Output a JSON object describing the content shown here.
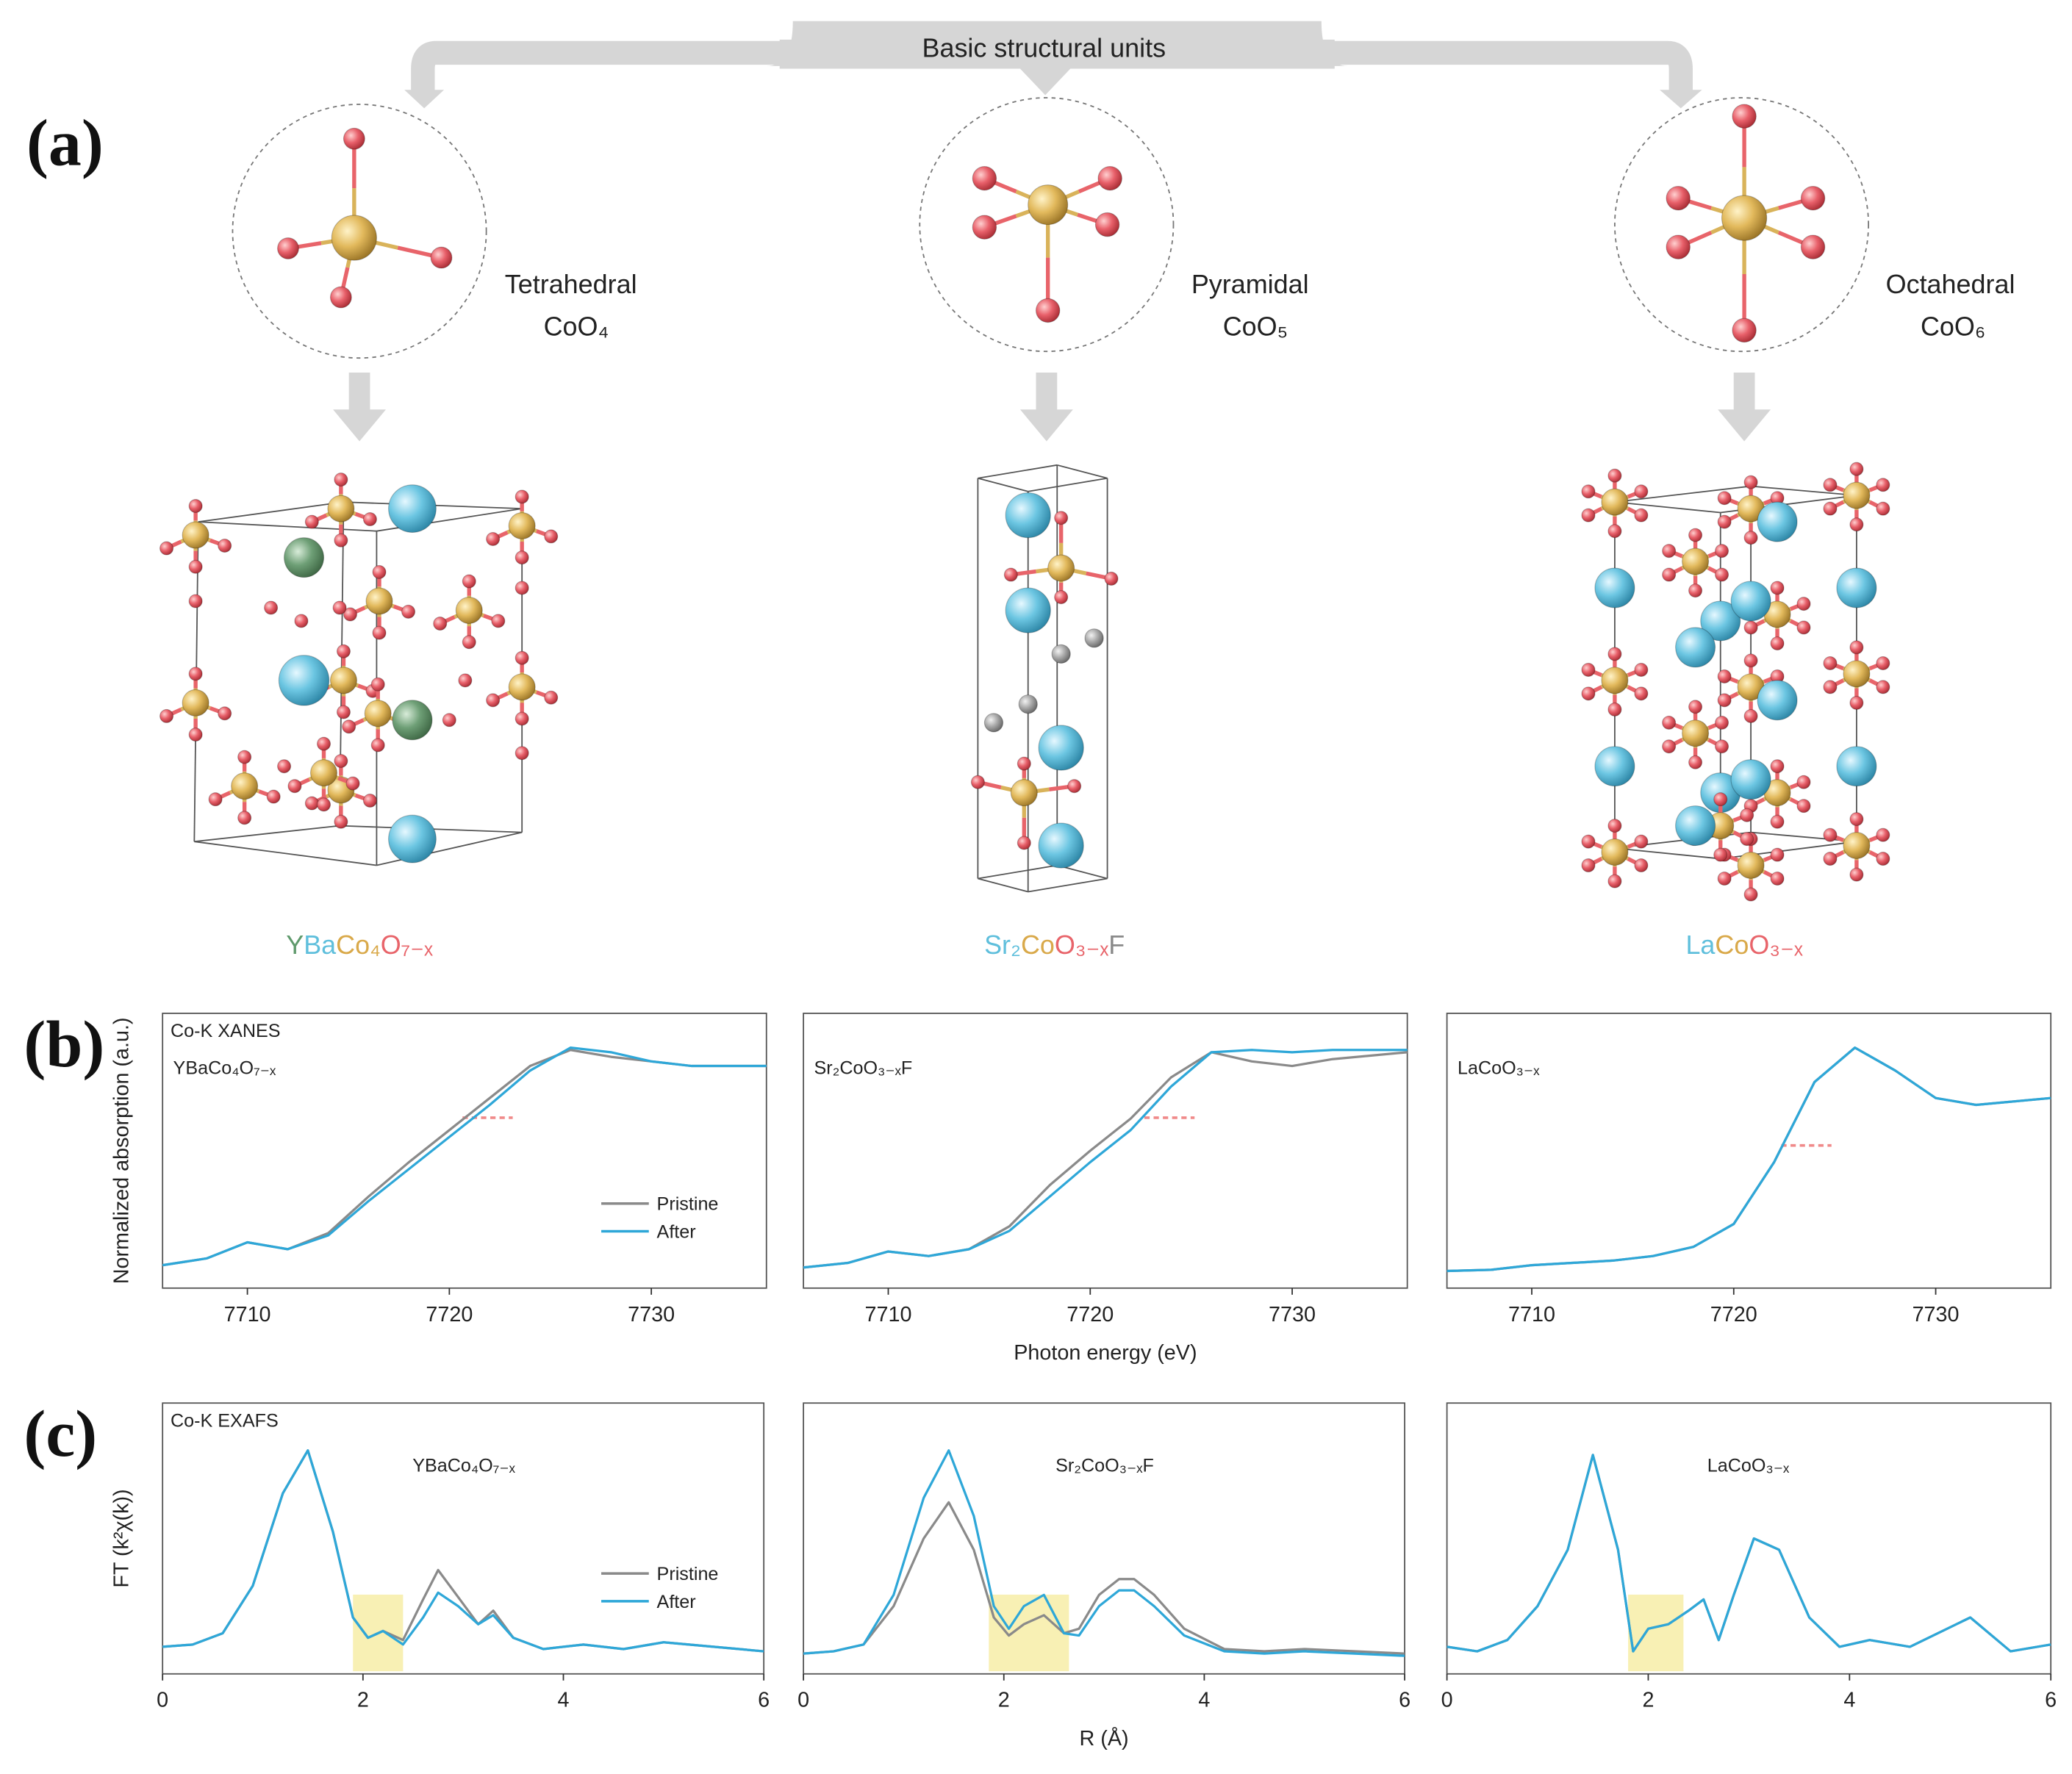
{
  "panel_a": {
    "label": "(a)",
    "title": "Basic structural units",
    "units": [
      {
        "name": "Tetrahedral",
        "formula": "CoO₄",
        "compound": [
          {
            "text": "Y",
            "color": "#5f9a6c"
          },
          {
            "text": "Ba",
            "color": "#5fbfdc"
          },
          {
            "text": "Co₄",
            "color": "#d9a94a"
          },
          {
            "text": "O₇₋ₓ",
            "color": "#e8646a"
          }
        ]
      },
      {
        "name": "Pyramidal",
        "formula": "CoO₅",
        "compound": [
          {
            "text": "Sr₂",
            "color": "#5fbfdc"
          },
          {
            "text": "Co",
            "color": "#d9a94a"
          },
          {
            "text": "O₃₋ₓ",
            "color": "#e8646a"
          },
          {
            "text": "F",
            "color": "#8a8a8a"
          }
        ]
      },
      {
        "name": "Octahedral",
        "formula": "CoO₆",
        "compound": [
          {
            "text": "La",
            "color": "#5fbfdc"
          },
          {
            "text": "Co",
            "color": "#d9a94a"
          },
          {
            "text": "O₃₋ₓ",
            "color": "#e8646a"
          }
        ]
      }
    ]
  },
  "chart_data": [
    {
      "type": "line",
      "panel_label": "(b)",
      "label": "Co-K XANES",
      "sample": "YBaCo₄O₇₋ₓ",
      "y_label": "Normalized absorption (a.u.)",
      "x": [
        7705.8,
        7708,
        7710,
        7712,
        7714,
        7716,
        7718,
        7720,
        7722,
        7724,
        7726,
        7728,
        7730,
        7732,
        7735.7
      ],
      "xlim": [
        7705.8,
        7735.7
      ],
      "xticks": [
        7710,
        7720,
        7730
      ],
      "ylim": [
        0,
        1.2
      ],
      "legend": "lower right",
      "series": [
        {
          "name": "Pristine",
          "color": "#8a8a8a",
          "values": [
            0.1,
            0.13,
            0.2,
            0.17,
            0.24,
            0.4,
            0.55,
            0.69,
            0.83,
            0.97,
            1.04,
            1.01,
            0.99,
            0.97,
            0.97
          ]
        },
        {
          "name": "After",
          "color": "#2ea7d8",
          "values": [
            0.1,
            0.13,
            0.2,
            0.17,
            0.23,
            0.38,
            0.52,
            0.66,
            0.8,
            0.95,
            1.05,
            1.03,
            0.99,
            0.97,
            0.97
          ]
        }
      ]
    },
    {
      "type": "line",
      "sample": "Sr₂CoO₃₋ₓF",
      "x_label": "Photon energy (eV)",
      "x": [
        7705.8,
        7708,
        7710,
        7712,
        7714,
        7716,
        7718,
        7720,
        7722,
        7724,
        7726,
        7728,
        7730,
        7732,
        7735.7
      ],
      "xlim": [
        7705.8,
        7735.7
      ],
      "xticks": [
        7710,
        7720,
        7730
      ],
      "ylim": [
        0,
        1.2
      ],
      "series": [
        {
          "name": "Pristine",
          "color": "#8a8a8a",
          "values": [
            0.09,
            0.11,
            0.16,
            0.14,
            0.17,
            0.27,
            0.45,
            0.6,
            0.74,
            0.92,
            1.03,
            0.99,
            0.97,
            1.0,
            1.03
          ]
        },
        {
          "name": "After",
          "color": "#2ea7d8",
          "values": [
            0.09,
            0.11,
            0.16,
            0.14,
            0.17,
            0.25,
            0.4,
            0.55,
            0.69,
            0.88,
            1.03,
            1.04,
            1.03,
            1.04,
            1.04
          ]
        }
      ]
    },
    {
      "type": "line",
      "sample": "LaCoO₃₋ₓ",
      "x": [
        7705.8,
        7708,
        7710,
        7712,
        7714,
        7716,
        7718,
        7720,
        7722,
        7724,
        7726,
        7728,
        7730,
        7732,
        7735.7
      ],
      "xlim": [
        7705.8,
        7735.7
      ],
      "xticks": [
        7710,
        7720,
        7730
      ],
      "ylim": [
        0,
        1.2
      ],
      "series": [
        {
          "name": "Pristine",
          "color": "#8a8a8a",
          "values": [
            0.075,
            0.08,
            0.1,
            0.11,
            0.12,
            0.14,
            0.18,
            0.28,
            0.55,
            0.9,
            1.05,
            0.95,
            0.83,
            0.8,
            0.83
          ]
        },
        {
          "name": "After",
          "color": "#2ea7d8",
          "values": [
            0.075,
            0.08,
            0.1,
            0.11,
            0.12,
            0.14,
            0.18,
            0.28,
            0.55,
            0.9,
            1.05,
            0.95,
            0.83,
            0.8,
            0.83
          ]
        }
      ]
    },
    {
      "type": "line",
      "panel_label": "(c)",
      "label": "Co-K EXAFS",
      "sample": "YBaCo₄O₇₋ₓ",
      "y_label": "FT (k²χ(k))",
      "x": [
        0,
        0.3,
        0.6,
        0.9,
        1.2,
        1.45,
        1.7,
        1.9,
        2.05,
        2.2,
        2.4,
        2.6,
        2.75,
        2.95,
        3.15,
        3.3,
        3.5,
        3.8,
        4.2,
        4.6,
        5.0,
        5.5,
        6
      ],
      "xlim": [
        0,
        6
      ],
      "xticks": [
        0,
        2,
        4,
        6
      ],
      "ylim": [
        0,
        1.2
      ],
      "legend": "lower right",
      "highlight": [
        1.9,
        2.4
      ],
      "highlight_color": "#f8f0b4",
      "series": [
        {
          "name": "Pristine",
          "color": "#8a8a8a",
          "values": [
            0.12,
            0.13,
            0.18,
            0.39,
            0.8,
            0.99,
            0.63,
            0.25,
            0.16,
            0.19,
            0.15,
            0.33,
            0.46,
            0.34,
            0.22,
            0.28,
            0.16,
            0.11,
            0.13,
            0.11,
            0.14,
            0.12,
            0.1
          ]
        },
        {
          "name": "After",
          "color": "#2ea7d8",
          "values": [
            0.12,
            0.13,
            0.18,
            0.39,
            0.8,
            0.99,
            0.63,
            0.25,
            0.16,
            0.19,
            0.13,
            0.25,
            0.36,
            0.3,
            0.22,
            0.26,
            0.16,
            0.11,
            0.13,
            0.11,
            0.14,
            0.12,
            0.1
          ]
        }
      ]
    },
    {
      "type": "line",
      "sample": "Sr₂CoO₃₋ₓF",
      "x_label": "R (Å)",
      "x": [
        0,
        0.3,
        0.6,
        0.9,
        1.2,
        1.45,
        1.7,
        1.9,
        2.05,
        2.2,
        2.4,
        2.6,
        2.75,
        2.95,
        3.15,
        3.3,
        3.5,
        3.8,
        4.2,
        4.6,
        5.0,
        5.5,
        6
      ],
      "xlim": [
        0,
        6
      ],
      "xticks": [
        0,
        2,
        4,
        6
      ],
      "ylim": [
        0,
        1.2
      ],
      "highlight": [
        1.85,
        2.65
      ],
      "highlight_color": "#f8f0b4",
      "series": [
        {
          "name": "Pristine",
          "color": "#8a8a8a",
          "values": [
            0.09,
            0.1,
            0.13,
            0.3,
            0.6,
            0.76,
            0.55,
            0.25,
            0.17,
            0.22,
            0.26,
            0.18,
            0.2,
            0.35,
            0.42,
            0.42,
            0.35,
            0.2,
            0.11,
            0.1,
            0.11,
            0.1,
            0.09
          ]
        },
        {
          "name": "After",
          "color": "#2ea7d8",
          "values": [
            0.09,
            0.1,
            0.13,
            0.35,
            0.78,
            0.99,
            0.7,
            0.3,
            0.2,
            0.3,
            0.35,
            0.18,
            0.17,
            0.3,
            0.37,
            0.37,
            0.3,
            0.17,
            0.1,
            0.09,
            0.1,
            0.09,
            0.08
          ]
        }
      ]
    },
    {
      "type": "line",
      "sample": "LaCoO₃₋ₓ",
      "x": [
        0,
        0.3,
        0.6,
        0.9,
        1.2,
        1.45,
        1.7,
        1.85,
        2.0,
        2.2,
        2.4,
        2.55,
        2.7,
        2.85,
        3.05,
        3.3,
        3.6,
        3.9,
        4.2,
        4.6,
        5.2,
        5.6,
        6
      ],
      "xlim": [
        0,
        6
      ],
      "xticks": [
        0,
        2,
        4,
        6
      ],
      "ylim": [
        0,
        1.2
      ],
      "highlight": [
        1.8,
        2.35
      ],
      "highlight_color": "#f8f0b4",
      "series": [
        {
          "name": "Pristine",
          "color": "#8a8a8a",
          "values": [
            0.12,
            0.1,
            0.15,
            0.3,
            0.55,
            0.97,
            0.55,
            0.1,
            0.2,
            0.22,
            0.28,
            0.33,
            0.15,
            0.35,
            0.6,
            0.55,
            0.25,
            0.12,
            0.15,
            0.12,
            0.25,
            0.1,
            0.13
          ]
        },
        {
          "name": "After",
          "color": "#2ea7d8",
          "values": [
            0.12,
            0.1,
            0.15,
            0.3,
            0.55,
            0.97,
            0.55,
            0.1,
            0.2,
            0.22,
            0.28,
            0.33,
            0.15,
            0.35,
            0.6,
            0.55,
            0.25,
            0.12,
            0.15,
            0.12,
            0.25,
            0.1,
            0.13
          ]
        }
      ]
    }
  ]
}
